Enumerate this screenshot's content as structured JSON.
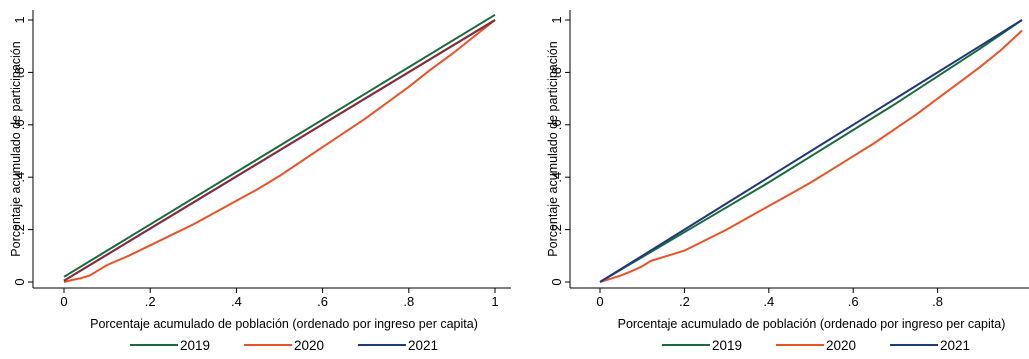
{
  "chart_data": [
    {
      "type": "line",
      "title": "",
      "xlabel": "Porcentaje acumulado de población (ordenado por ingreso per capita)",
      "ylabel": "Porcentaje acumulado de participación",
      "xlim": [
        0,
        1
      ],
      "ylim": [
        0,
        1
      ],
      "xticks": [
        {
          "value": 0,
          "label": "0"
        },
        {
          "value": 0.2,
          "label": ".2"
        },
        {
          "value": 0.4,
          "label": ".4"
        },
        {
          "value": 0.6,
          "label": ".6"
        },
        {
          "value": 0.8,
          "label": ".8"
        },
        {
          "value": 1,
          "label": "1"
        }
      ],
      "yticks": [
        {
          "value": 0,
          "label": "0"
        },
        {
          "value": 0.2,
          "label": ".2"
        },
        {
          "value": 0.4,
          "label": ".4"
        },
        {
          "value": 0.6,
          "label": ".6"
        },
        {
          "value": 0.8,
          "label": ".8"
        },
        {
          "value": 1,
          "label": "1"
        }
      ],
      "grid": false,
      "legend": "bottom",
      "series": [
        {
          "name": "2019",
          "color": "#1a6b3c",
          "x": [
            0,
            1
          ],
          "y": [
            0.02,
            1.02
          ]
        },
        {
          "name": "2020",
          "color": "#e8532a",
          "x": [
            0,
            0.02,
            0.04,
            0.06,
            0.08,
            0.1,
            0.15,
            0.2,
            0.25,
            0.3,
            0.35,
            0.4,
            0.45,
            0.5,
            0.55,
            0.6,
            0.65,
            0.7,
            0.75,
            0.8,
            0.85,
            0.9,
            0.95,
            1
          ],
          "y": [
            0,
            0.008,
            0.015,
            0.025,
            0.045,
            0.065,
            0.1,
            0.14,
            0.18,
            0.22,
            0.265,
            0.31,
            0.355,
            0.405,
            0.46,
            0.515,
            0.57,
            0.625,
            0.685,
            0.745,
            0.81,
            0.87,
            0.935,
            1.0
          ]
        },
        {
          "name": "2021",
          "color": "#1f3a7a",
          "x": [
            0,
            1
          ],
          "y": [
            0.005,
            1.0
          ]
        },
        {
          "name": "",
          "color": "#8b2a3a",
          "x": [
            0,
            1
          ],
          "y": [
            0.005,
            1.0
          ]
        }
      ]
    },
    {
      "type": "line",
      "title": "",
      "xlabel": "Porcentaje acumulado de población (ordenado por ingreso per capita)",
      "ylabel": "Porcentaje acumulado de participación",
      "xlim": [
        0,
        1
      ],
      "ylim": [
        0,
        1
      ],
      "xticks": [
        {
          "value": 0,
          "label": "0"
        },
        {
          "value": 0.2,
          "label": ".2"
        },
        {
          "value": 0.4,
          "label": ".4"
        },
        {
          "value": 0.6,
          "label": ".6"
        },
        {
          "value": 0.8,
          "label": ".8"
        }
      ],
      "yticks": [
        {
          "value": 0,
          "label": "0"
        },
        {
          "value": 0.2,
          "label": ".2"
        },
        {
          "value": 0.4,
          "label": ".4"
        },
        {
          "value": 0.6,
          "label": ".6"
        },
        {
          "value": 0.8,
          "label": ".8"
        },
        {
          "value": 1,
          "label": "1"
        }
      ],
      "grid": false,
      "legend": "bottom",
      "series": [
        {
          "name": "2019",
          "color": "#1a6b3c",
          "x": [
            0,
            0.1,
            0.2,
            0.3,
            0.4,
            0.5,
            0.6,
            0.7,
            0.8,
            0.9,
            1
          ],
          "y": [
            0,
            0.095,
            0.19,
            0.285,
            0.38,
            0.48,
            0.58,
            0.68,
            0.785,
            0.89,
            1.0
          ]
        },
        {
          "name": "2020",
          "color": "#e8532a",
          "x": [
            0,
            0.02,
            0.05,
            0.08,
            0.1,
            0.12,
            0.15,
            0.2,
            0.25,
            0.3,
            0.35,
            0.4,
            0.45,
            0.5,
            0.55,
            0.6,
            0.65,
            0.7,
            0.75,
            0.8,
            0.85,
            0.9,
            0.95,
            1
          ],
          "y": [
            0,
            0.01,
            0.025,
            0.045,
            0.06,
            0.08,
            0.095,
            0.12,
            0.16,
            0.2,
            0.245,
            0.29,
            0.335,
            0.38,
            0.43,
            0.48,
            0.53,
            0.585,
            0.64,
            0.7,
            0.76,
            0.82,
            0.885,
            0.96
          ]
        },
        {
          "name": "2021",
          "color": "#1f3a7a",
          "x": [
            0,
            0.1,
            0.2,
            0.3,
            0.4,
            0.5,
            0.6,
            0.7,
            0.8,
            0.9,
            1
          ],
          "y": [
            0,
            0.1,
            0.2,
            0.3,
            0.4,
            0.5,
            0.6,
            0.7,
            0.8,
            0.9,
            1.0
          ]
        }
      ]
    }
  ]
}
